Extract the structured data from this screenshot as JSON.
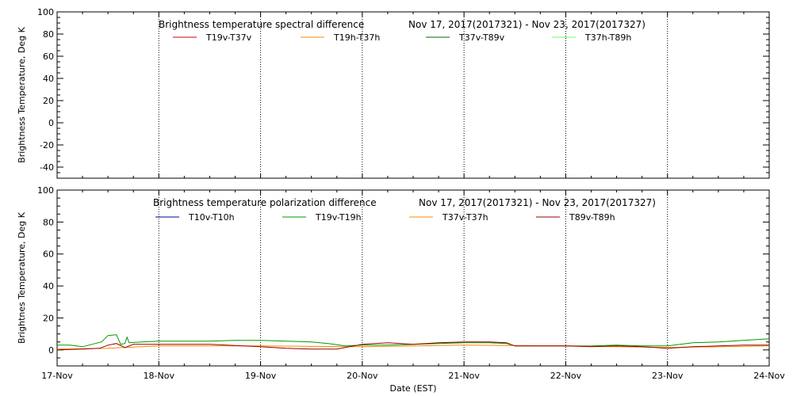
{
  "chart_data": [
    {
      "type": "line",
      "title": "Brightness temperature spectral difference",
      "date_range": "Nov 17, 2017(2017321) - Nov 23, 2017(2017327)",
      "ylabel": "Brightness Temperature, Deg K",
      "xlabel": "",
      "ylim": [
        -50,
        100
      ],
      "yticks": [
        100,
        80,
        60,
        40,
        20,
        0,
        -20,
        -40
      ],
      "xlim": [
        "2017-11-17",
        "2017-11-24"
      ],
      "x_tick_labels": [
        "17-Nov",
        "18-Nov",
        "19-Nov",
        "20-Nov",
        "21-Nov",
        "22-Nov",
        "23-Nov",
        "24-Nov"
      ],
      "grid": "vertical dotted at day boundaries",
      "legend_placement": "top",
      "series": [
        {
          "name": "T19v-T37v",
          "color": "#cc0000",
          "points": []
        },
        {
          "name": "T19h-T37h",
          "color": "#ff8800",
          "points": []
        },
        {
          "name": "T37v-T89v",
          "color": "#006600",
          "points": []
        },
        {
          "name": "T37h-T89h",
          "color": "#66ff66",
          "points": []
        }
      ]
    },
    {
      "type": "line",
      "title": "Brightness temperature polarization difference",
      "date_range": "Nov 17, 2017(2017321) - Nov 23, 2017(2017327)",
      "ylabel": "Brightnes Temperature, Deg K",
      "xlabel": "Date (EST)",
      "ylim": [
        -10,
        100
      ],
      "yticks": [
        100,
        80,
        60,
        40,
        20,
        0
      ],
      "xlim": [
        "2017-11-17",
        "2017-11-24"
      ],
      "x_tick_labels": [
        "17-Nov",
        "18-Nov",
        "19-Nov",
        "20-Nov",
        "21-Nov",
        "22-Nov",
        "23-Nov",
        "24-Nov"
      ],
      "grid": "vertical dotted at day boundaries",
      "legend_placement": "top",
      "series": [
        {
          "name": "T10v-T10h",
          "color": "#000099",
          "points": []
        },
        {
          "name": "T19v-T19h",
          "color": "#009900",
          "points": [
            [
              "2017-11-17T00:00",
              3
            ],
            [
              "2017-11-17T03:00",
              3
            ],
            [
              "2017-11-17T06:00",
              2
            ],
            [
              "2017-11-17T09:00",
              4
            ],
            [
              "2017-11-17T10:30",
              5
            ],
            [
              "2017-11-17T12:00",
              9
            ],
            [
              "2017-11-17T14:00",
              9.5
            ],
            [
              "2017-11-17T15:00",
              3.5
            ],
            [
              "2017-11-17T16:00",
              4
            ],
            [
              "2017-11-17T16:30",
              8
            ],
            [
              "2017-11-17T17:00",
              4.5
            ],
            [
              "2017-11-17T20:00",
              5
            ],
            [
              "2017-11-18T00:00",
              5.5
            ],
            [
              "2017-11-18T06:00",
              5.5
            ],
            [
              "2017-11-18T12:00",
              5.5
            ],
            [
              "2017-11-18T18:00",
              6
            ],
            [
              "2017-11-19T00:00",
              6
            ],
            [
              "2017-11-19T06:00",
              5.5
            ],
            [
              "2017-11-19T12:00",
              5
            ],
            [
              "2017-11-19T16:00",
              4
            ],
            [
              "2017-11-19T20:00",
              2.5
            ],
            [
              "2017-11-20T00:00",
              3
            ],
            [
              "2017-11-20T06:00",
              3
            ],
            [
              "2017-11-20T12:00",
              3.5
            ],
            [
              "2017-11-20T18:00",
              4
            ],
            [
              "2017-11-21T00:00",
              4.5
            ],
            [
              "2017-11-21T06:00",
              4.5
            ],
            [
              "2017-11-21T10:00",
              4
            ],
            [
              "2017-11-21T12:00",
              2.5
            ],
            [
              "2017-11-21T18:00",
              2.5
            ],
            [
              "2017-11-22T00:00",
              2.5
            ],
            [
              "2017-11-22T06:00",
              2.5
            ],
            [
              "2017-11-22T12:00",
              3
            ],
            [
              "2017-11-22T18:00",
              2.5
            ],
            [
              "2017-11-23T00:00",
              2.5
            ],
            [
              "2017-11-23T06:00",
              4.5
            ],
            [
              "2017-11-23T12:00",
              5
            ],
            [
              "2017-11-23T18:00",
              6
            ],
            [
              "2017-11-24T00:00",
              7
            ]
          ]
        },
        {
          "name": "T37v-T37h",
          "color": "#ff8800",
          "points": [
            [
              "2017-11-17T00:00",
              0.5
            ],
            [
              "2017-11-17T12:00",
              1
            ],
            [
              "2017-11-18T00:00",
              2.5
            ],
            [
              "2017-11-19T00:00",
              2.5
            ],
            [
              "2017-11-20T00:00",
              2
            ],
            [
              "2017-11-21T00:00",
              3
            ],
            [
              "2017-11-22T00:00",
              2.5
            ],
            [
              "2017-11-23T00:00",
              1.5
            ],
            [
              "2017-11-24T00:00",
              2.5
            ]
          ]
        },
        {
          "name": "T89v-T89h",
          "color": "#990000",
          "points": [
            [
              "2017-11-17T00:00",
              0
            ],
            [
              "2017-11-17T06:00",
              0.5
            ],
            [
              "2017-11-17T10:00",
              1
            ],
            [
              "2017-11-17T12:00",
              3
            ],
            [
              "2017-11-17T14:00",
              4
            ],
            [
              "2017-11-17T16:00",
              1.5
            ],
            [
              "2017-11-17T18:00",
              3.5
            ],
            [
              "2017-11-18T00:00",
              3.5
            ],
            [
              "2017-11-18T12:00",
              3.5
            ],
            [
              "2017-11-19T00:00",
              2
            ],
            [
              "2017-11-19T06:00",
              1
            ],
            [
              "2017-11-19T12:00",
              0.5
            ],
            [
              "2017-11-19T18:00",
              0.5
            ],
            [
              "2017-11-20T00:00",
              3.5
            ],
            [
              "2017-11-20T06:00",
              4.5
            ],
            [
              "2017-11-20T12:00",
              3.5
            ],
            [
              "2017-11-20T18:00",
              4.5
            ],
            [
              "2017-11-21T00:00",
              5
            ],
            [
              "2017-11-21T06:00",
              5
            ],
            [
              "2017-11-21T10:00",
              4.5
            ],
            [
              "2017-11-21T12:00",
              2.5
            ],
            [
              "2017-11-21T18:00",
              2.5
            ],
            [
              "2017-11-22T00:00",
              2.5
            ],
            [
              "2017-11-22T06:00",
              2
            ],
            [
              "2017-11-22T12:00",
              2.5
            ],
            [
              "2017-11-22T18:00",
              2
            ],
            [
              "2017-11-23T00:00",
              1
            ],
            [
              "2017-11-23T06:00",
              2
            ],
            [
              "2017-11-23T12:00",
              2.5
            ],
            [
              "2017-11-23T18:00",
              3
            ],
            [
              "2017-11-24T00:00",
              3
            ]
          ]
        }
      ]
    }
  ]
}
